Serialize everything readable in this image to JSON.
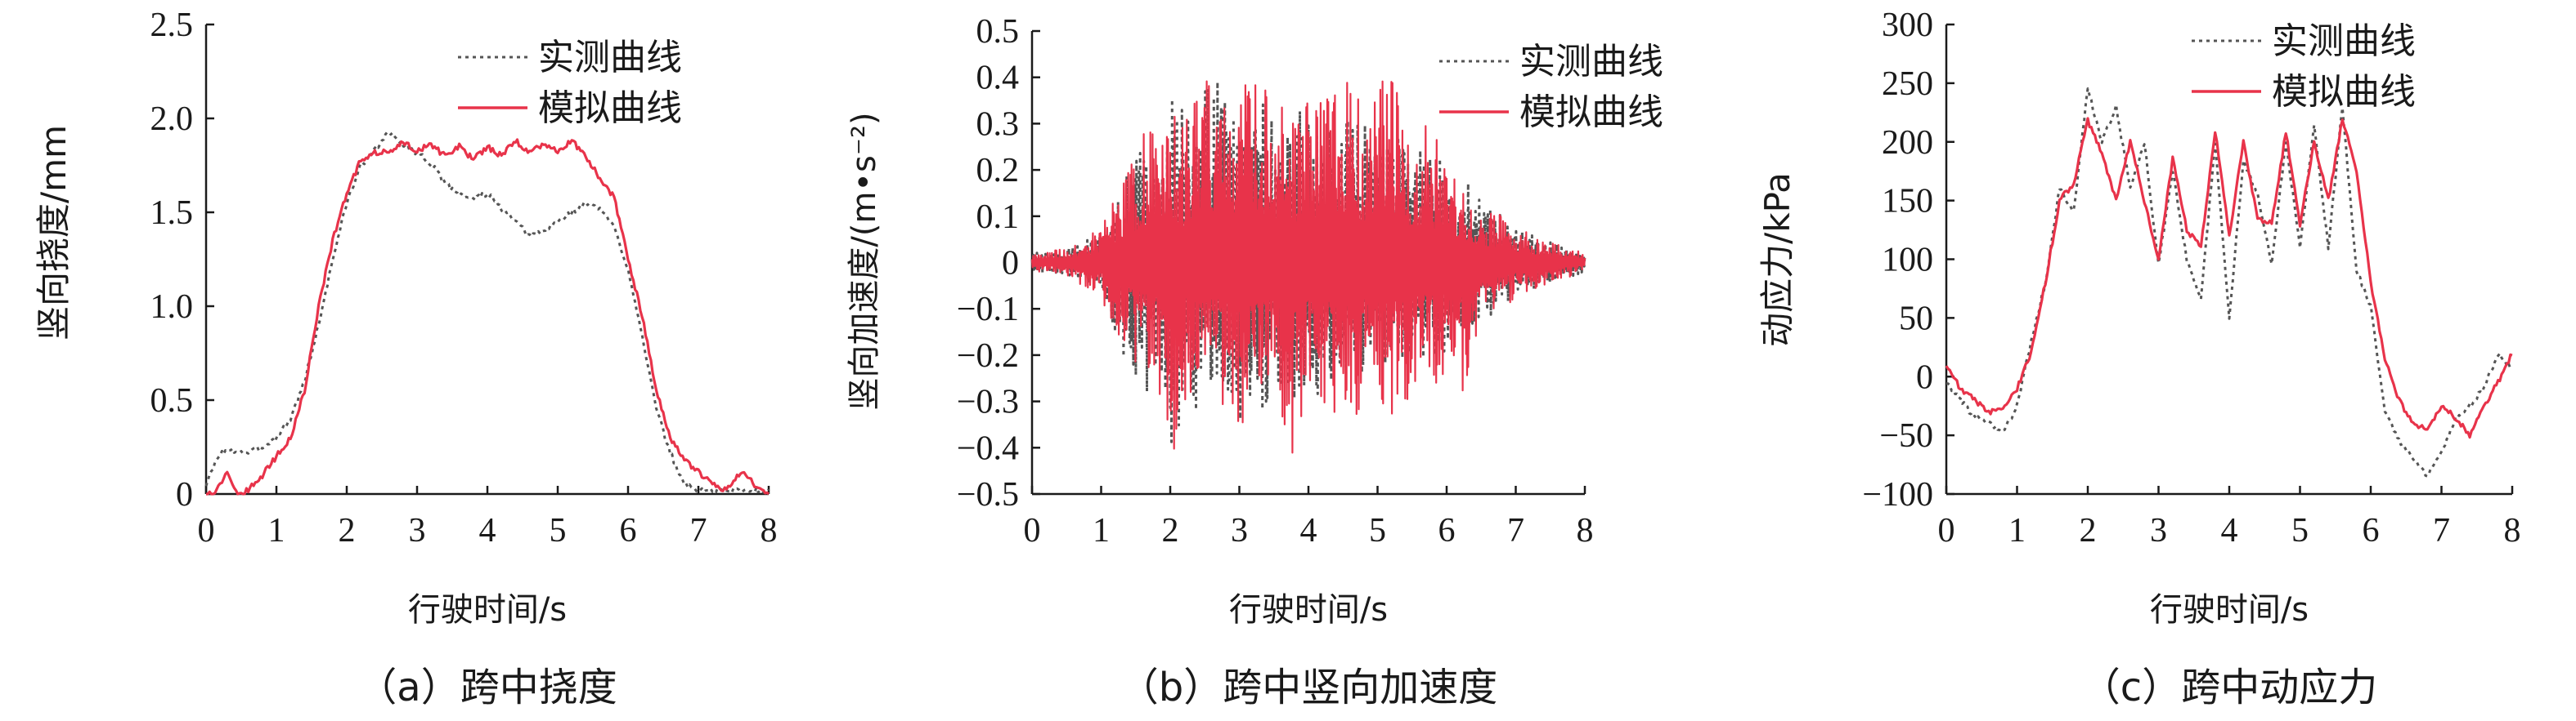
{
  "chart_data": [
    {
      "type": "line",
      "caption": "（a）跨中挠度",
      "xlabel": "行驶时间/s",
      "ylabel": "竖向挠度/mm",
      "xlim": [
        0,
        8
      ],
      "ylim": [
        0,
        2.5
      ],
      "xticks": [
        "0",
        "1",
        "2",
        "3",
        "4",
        "5",
        "6",
        "7",
        "8"
      ],
      "yticks": [
        "0",
        "0.5",
        "1.0",
        "1.5",
        "2.0",
        "2.5"
      ],
      "legend_position": "top-right",
      "series": [
        {
          "name": "实测曲线",
          "style": "dotted",
          "color": "#555555",
          "x": [
            0,
            0.2,
            0.4,
            0.6,
            0.8,
            1.0,
            1.2,
            1.4,
            1.6,
            1.8,
            2.0,
            2.2,
            2.4,
            2.6,
            2.8,
            3.0,
            3.2,
            3.4,
            3.6,
            3.8,
            4.0,
            4.2,
            4.4,
            4.6,
            4.8,
            5.0,
            5.2,
            5.4,
            5.6,
            5.8,
            6.0,
            6.2,
            6.4,
            6.6,
            6.8,
            7.0,
            7.2,
            7.4,
            7.6,
            7.8,
            8.0
          ],
          "y": [
            0.05,
            0.22,
            0.23,
            0.22,
            0.25,
            0.3,
            0.4,
            0.6,
            0.9,
            1.25,
            1.55,
            1.75,
            1.83,
            1.93,
            1.85,
            1.82,
            1.76,
            1.65,
            1.6,
            1.57,
            1.6,
            1.52,
            1.45,
            1.37,
            1.4,
            1.45,
            1.5,
            1.55,
            1.52,
            1.42,
            1.2,
            0.85,
            0.45,
            0.22,
            0.05,
            0.02,
            0.02,
            0.02,
            0.02,
            0.02,
            0.02
          ]
        },
        {
          "name": "模拟曲线",
          "style": "solid",
          "color": "#e8334a",
          "x": [
            0,
            0.15,
            0.3,
            0.45,
            0.6,
            0.8,
            1.0,
            1.2,
            1.4,
            1.6,
            1.8,
            2.0,
            2.2,
            2.4,
            2.6,
            2.8,
            3.0,
            3.2,
            3.4,
            3.6,
            3.8,
            4.0,
            4.2,
            4.4,
            4.6,
            4.8,
            5.0,
            5.2,
            5.4,
            5.6,
            5.8,
            6.0,
            6.2,
            6.4,
            6.6,
            6.8,
            7.0,
            7.2,
            7.4,
            7.6,
            7.8,
            8.0
          ],
          "y": [
            0,
            0.02,
            0.12,
            0.0,
            0.02,
            0.1,
            0.2,
            0.3,
            0.55,
            1.0,
            1.35,
            1.6,
            1.78,
            1.82,
            1.82,
            1.87,
            1.83,
            1.86,
            1.8,
            1.85,
            1.78,
            1.85,
            1.8,
            1.88,
            1.82,
            1.86,
            1.83,
            1.88,
            1.8,
            1.68,
            1.58,
            1.25,
            0.95,
            0.55,
            0.3,
            0.18,
            0.12,
            0.05,
            0.02,
            0.12,
            0.05,
            0.0
          ]
        }
      ]
    },
    {
      "type": "line",
      "caption": "（b）跨中竖向加速度",
      "xlabel": "行驶时间/s",
      "ylabel": "竖向加速度/(m•s⁻²)",
      "xlim": [
        0,
        8
      ],
      "ylim": [
        -0.5,
        0.5
      ],
      "xticks": [
        "0",
        "1",
        "2",
        "3",
        "4",
        "5",
        "6",
        "7",
        "8"
      ],
      "yticks": [
        "-0.5",
        "-0.4",
        "-0.3",
        "-0.2",
        "-0.1",
        "0",
        "0.1",
        "0.2",
        "0.3",
        "0.4",
        "0.5"
      ],
      "legend_position": "top-right",
      "series": [
        {
          "name": "实测曲线",
          "style": "dotted",
          "color": "#555555",
          "x": [
            0,
            0.5,
            1.0,
            1.3,
            1.6,
            1.9,
            2.0,
            2.2,
            2.5,
            2.8,
            3.0,
            3.3,
            3.6,
            3.9,
            4.2,
            4.5,
            4.8,
            5.1,
            5.4,
            5.7,
            6.0,
            6.3,
            6.6,
            7.0,
            7.4,
            7.8,
            8.0
          ],
          "y_envelope_upper": [
            0.02,
            0.03,
            0.06,
            0.18,
            0.25,
            0.3,
            0.4,
            0.32,
            0.38,
            0.4,
            0.33,
            0.35,
            0.3,
            0.34,
            0.3,
            0.32,
            0.3,
            0.28,
            0.3,
            0.25,
            0.22,
            0.18,
            0.12,
            0.08,
            0.05,
            0.03,
            0.02
          ],
          "y_envelope_lower": [
            -0.02,
            -0.03,
            -0.06,
            -0.2,
            -0.28,
            -0.35,
            -0.4,
            -0.33,
            -0.35,
            -0.3,
            -0.34,
            -0.32,
            -0.3,
            -0.33,
            -0.28,
            -0.3,
            -0.3,
            -0.27,
            -0.25,
            -0.22,
            -0.2,
            -0.15,
            -0.12,
            -0.08,
            -0.05,
            -0.03,
            -0.02
          ]
        },
        {
          "name": "模拟曲线",
          "style": "solid",
          "color": "#e8334a",
          "x": [
            0,
            0.5,
            1.0,
            1.3,
            1.6,
            1.9,
            2.0,
            2.2,
            2.5,
            2.8,
            3.0,
            3.3,
            3.6,
            3.7,
            3.9,
            4.2,
            4.5,
            4.8,
            5.1,
            5.4,
            5.7,
            6.0,
            6.3,
            6.6,
            7.0,
            7.4,
            7.8,
            8.0
          ],
          "y_envelope_upper": [
            0.02,
            0.03,
            0.08,
            0.2,
            0.3,
            0.35,
            0.35,
            0.3,
            0.44,
            0.35,
            0.4,
            0.38,
            0.35,
            0.3,
            0.35,
            0.4,
            0.42,
            0.35,
            0.47,
            0.32,
            0.3,
            0.25,
            0.18,
            0.12,
            0.08,
            0.05,
            0.03,
            0.02
          ],
          "y_envelope_lower": [
            -0.02,
            -0.03,
            -0.08,
            -0.18,
            -0.25,
            -0.3,
            -0.5,
            -0.3,
            -0.28,
            -0.32,
            -0.35,
            -0.33,
            -0.3,
            -0.5,
            -0.33,
            -0.3,
            -0.38,
            -0.3,
            -0.35,
            -0.3,
            -0.27,
            -0.25,
            -0.3,
            -0.12,
            -0.08,
            -0.05,
            -0.03,
            -0.02
          ]
        }
      ]
    },
    {
      "type": "line",
      "caption": "（c）跨中动应力",
      "xlabel": "行驶时间/s",
      "ylabel": "动应力/kPa",
      "xlim": [
        0,
        8
      ],
      "ylim": [
        -100,
        300
      ],
      "xticks": [
        "0",
        "1",
        "2",
        "3",
        "4",
        "5",
        "6",
        "7",
        "8"
      ],
      "yticks": [
        "-100",
        "-50",
        "0",
        "50",
        "100",
        "150",
        "200",
        "250",
        "300"
      ],
      "legend_position": "top-right",
      "series": [
        {
          "name": "实测曲线",
          "style": "dotted",
          "color": "#555555",
          "x": [
            0,
            0.2,
            0.4,
            0.6,
            0.8,
            1.0,
            1.2,
            1.4,
            1.6,
            1.8,
            2.0,
            2.2,
            2.4,
            2.6,
            2.8,
            3.0,
            3.2,
            3.4,
            3.6,
            3.8,
            4.0,
            4.2,
            4.4,
            4.6,
            4.8,
            5.0,
            5.2,
            5.4,
            5.6,
            5.8,
            6.0,
            6.2,
            6.4,
            6.6,
            6.8,
            7.0,
            7.2,
            7.4,
            7.6,
            7.8,
            8.0
          ],
          "y": [
            -5,
            -20,
            -35,
            -40,
            -48,
            -25,
            30,
            80,
            160,
            140,
            245,
            200,
            230,
            160,
            200,
            95,
            175,
            100,
            65,
            200,
            50,
            185,
            155,
            95,
            200,
            110,
            215,
            110,
            230,
            90,
            60,
            -30,
            -55,
            -70,
            -85,
            -65,
            -35,
            -25,
            -10,
            20,
            5
          ]
        },
        {
          "name": "模拟曲线",
          "style": "solid",
          "color": "#e8334a",
          "x": [
            0,
            0.2,
            0.4,
            0.6,
            0.8,
            1.0,
            1.2,
            1.4,
            1.6,
            1.8,
            2.0,
            2.2,
            2.4,
            2.6,
            2.8,
            3.0,
            3.2,
            3.4,
            3.6,
            3.8,
            4.0,
            4.2,
            4.4,
            4.6,
            4.8,
            5.0,
            5.2,
            5.4,
            5.6,
            5.8,
            6.0,
            6.2,
            6.4,
            6.6,
            6.8,
            7.0,
            7.2,
            7.4,
            7.6,
            7.8,
            8.0
          ],
          "y": [
            10,
            -10,
            -20,
            -30,
            -28,
            -10,
            20,
            80,
            150,
            165,
            218,
            190,
            150,
            200,
            150,
            100,
            185,
            125,
            110,
            210,
            120,
            200,
            135,
            130,
            208,
            130,
            200,
            150,
            220,
            175,
            80,
            15,
            -20,
            -40,
            -45,
            -25,
            -35,
            -50,
            -25,
            -5,
            20
          ]
        }
      ]
    }
  ]
}
